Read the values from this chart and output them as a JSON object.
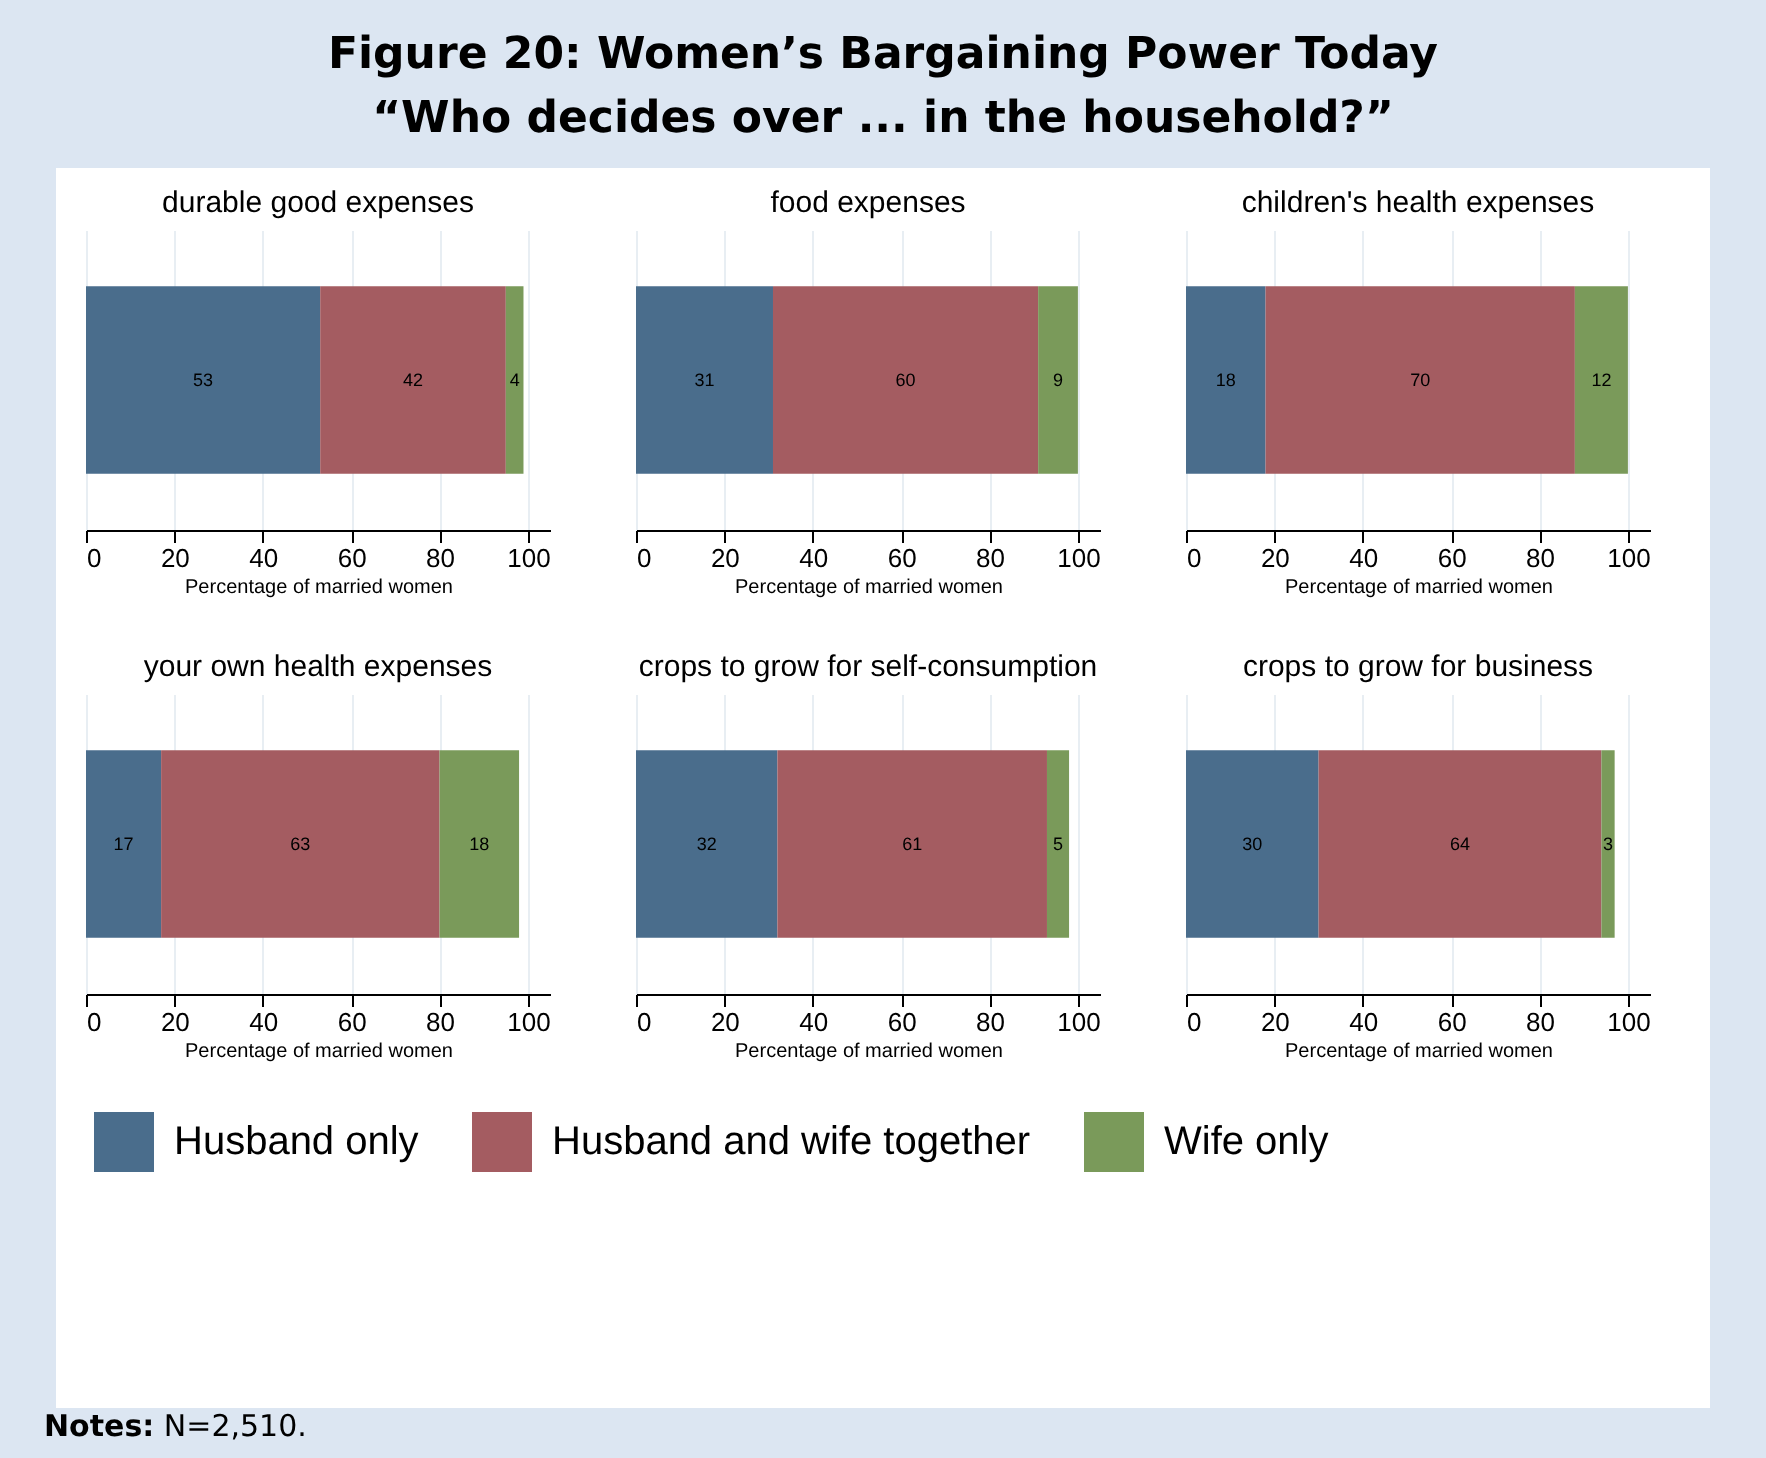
{
  "chart_data": [
    {
      "type": "bar",
      "orientation": "horizontal",
      "stacked": true,
      "title": "durable good expenses",
      "xlabel": "Percentage of married women",
      "categories": [
        null
      ],
      "xlim": [
        0,
        105
      ],
      "xticks": [
        0,
        20,
        40,
        60,
        80,
        100
      ],
      "grid": "x",
      "data_labels": true,
      "legend": "bottom",
      "annotations": [
        "Figure 20:  Women’s Bargaining Power Today",
        "“Who decides over ... in the household?”",
        "Notes: N=2,510."
      ],
      "series": [
        {
          "name": "Husband only",
          "color": "#4a6d8c",
          "values": [
            53
          ]
        },
        {
          "name": "Husband and wife together",
          "color": "#a45c61",
          "values": [
            42
          ]
        },
        {
          "name": "Wife only",
          "color": "#7a9a5a",
          "values": [
            4
          ]
        }
      ]
    },
    {
      "type": "bar",
      "orientation": "horizontal",
      "stacked": true,
      "title": "food expenses",
      "xlabel": "Percentage of married women",
      "categories": [
        null
      ],
      "xlim": [
        0,
        105
      ],
      "xticks": [
        0,
        20,
        40,
        60,
        80,
        100
      ],
      "grid": "x",
      "data_labels": true,
      "legend": "bottom",
      "series": [
        {
          "name": "Husband only",
          "color": "#4a6d8c",
          "values": [
            31
          ]
        },
        {
          "name": "Husband and wife together",
          "color": "#a45c61",
          "values": [
            60
          ]
        },
        {
          "name": "Wife only",
          "color": "#7a9a5a",
          "values": [
            9
          ]
        }
      ]
    },
    {
      "type": "bar",
      "orientation": "horizontal",
      "stacked": true,
      "title": "children's health expenses",
      "xlabel": "Percentage of married women",
      "categories": [
        null
      ],
      "xlim": [
        0,
        105
      ],
      "xticks": [
        0,
        20,
        40,
        60,
        80,
        100
      ],
      "grid": "x",
      "data_labels": true,
      "legend": "bottom",
      "series": [
        {
          "name": "Husband only",
          "color": "#4a6d8c",
          "values": [
            18
          ]
        },
        {
          "name": "Husband and wife together",
          "color": "#a45c61",
          "values": [
            70
          ]
        },
        {
          "name": "Wife only",
          "color": "#7a9a5a",
          "values": [
            12
          ]
        }
      ]
    },
    {
      "type": "bar",
      "orientation": "horizontal",
      "stacked": true,
      "title": "your own health expenses",
      "xlabel": "Percentage of married women",
      "categories": [
        null
      ],
      "xlim": [
        0,
        105
      ],
      "xticks": [
        0,
        20,
        40,
        60,
        80,
        100
      ],
      "grid": "x",
      "data_labels": true,
      "legend": "bottom",
      "series": [
        {
          "name": "Husband only",
          "color": "#4a6d8c",
          "values": [
            17
          ]
        },
        {
          "name": "Husband and wife together",
          "color": "#a45c61",
          "values": [
            63
          ]
        },
        {
          "name": "Wife only",
          "color": "#7a9a5a",
          "values": [
            18
          ]
        }
      ]
    },
    {
      "type": "bar",
      "orientation": "horizontal",
      "stacked": true,
      "title": "crops to grow for self-consumption",
      "xlabel": "Percentage of married women",
      "categories": [
        null
      ],
      "xlim": [
        0,
        105
      ],
      "xticks": [
        0,
        20,
        40,
        60,
        80,
        100
      ],
      "grid": "x",
      "data_labels": true,
      "legend": "bottom",
      "series": [
        {
          "name": "Husband only",
          "color": "#4a6d8c",
          "values": [
            32
          ]
        },
        {
          "name": "Husband and wife together",
          "color": "#a45c61",
          "values": [
            61
          ]
        },
        {
          "name": "Wife only",
          "color": "#7a9a5a",
          "values": [
            5
          ]
        }
      ]
    },
    {
      "type": "bar",
      "orientation": "horizontal",
      "stacked": true,
      "title": "crops to grow for business",
      "xlabel": "Percentage of married women",
      "categories": [
        null
      ],
      "xlim": [
        0,
        105
      ],
      "xticks": [
        0,
        20,
        40,
        60,
        80,
        100
      ],
      "grid": "x",
      "data_labels": true,
      "legend": "bottom",
      "series": [
        {
          "name": "Husband only",
          "color": "#4a6d8c",
          "values": [
            30
          ]
        },
        {
          "name": "Husband and wife together",
          "color": "#a45c61",
          "values": [
            64
          ]
        },
        {
          "name": "Wife only",
          "color": "#7a9a5a",
          "values": [
            3
          ]
        }
      ]
    }
  ]
}
